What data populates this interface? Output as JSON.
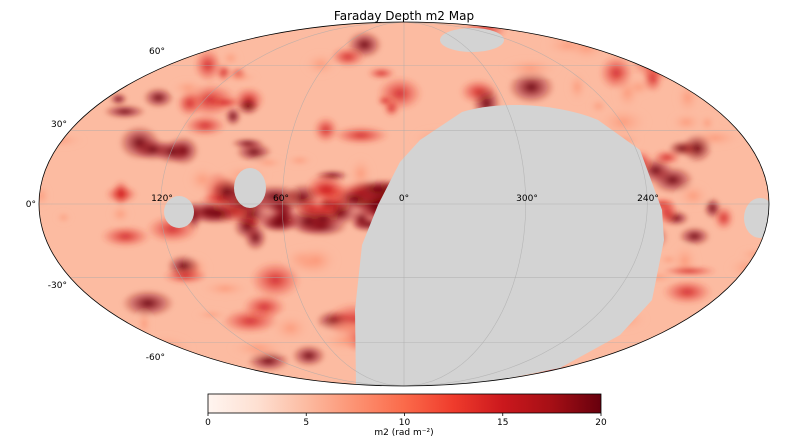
{
  "chart_data": {
    "type": "heatmap",
    "title": "Faraday Depth m2 Map",
    "projection": "mollweide",
    "longitude_labels": [
      "120°",
      "60°",
      "0°",
      "300°",
      "240°"
    ],
    "latitude_labels": [
      "60°",
      "30°",
      "0°",
      "-30°",
      "-60°"
    ],
    "grid": true,
    "masked_color": "#d3d3d3",
    "colormap": "Reds",
    "colormap_stops": [
      "#fff5f0",
      "#fee0d2",
      "#fcbba1",
      "#fc9272",
      "#fb6a4a",
      "#ef3b2c",
      "#cb181d",
      "#a50f15",
      "#67000d"
    ],
    "colorbar": {
      "label": "m2 (rad m⁻²)",
      "range": [
        0,
        20
      ],
      "ticks": [
        "0",
        "5",
        "10",
        "15",
        "20"
      ]
    }
  }
}
